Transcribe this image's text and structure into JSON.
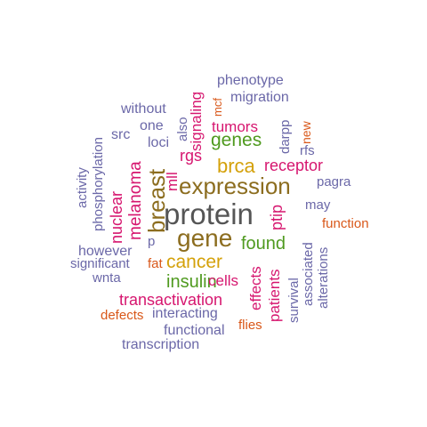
{
  "colors": {
    "gray": "#555555",
    "brown": "#8c6d1f",
    "green": "#4f9a1f",
    "magenta": "#d6166f",
    "mustard": "#d4a10a",
    "orange": "#d9581a",
    "purple": "#6b68a8"
  },
  "words": {
    "protein": "protein",
    "gene": "gene",
    "expression": "expression",
    "breast": "breast",
    "brca": "brca",
    "cancer": "cancer",
    "found": "found",
    "insulin": "insulin",
    "genes": "genes",
    "receptor": "receptor",
    "transactivation": "transactivation",
    "melanoma": "melanoma",
    "nuclear": "nuclear",
    "tumors": "tumors",
    "signaling": "signaling",
    "rgs": "rgs",
    "ptip": "ptip",
    "patients": "patients",
    "effects": "effects",
    "cells": "cells",
    "mll": "mll",
    "phenotype": "phenotype",
    "migration": "migration",
    "without": "without",
    "one": "one",
    "also": "also",
    "mcf": "mcf",
    "new": "new",
    "src": "src",
    "loci": "loci",
    "darpp": "darpp",
    "rfs": "rfs",
    "pagra": "pagra",
    "may": "may",
    "function": "function",
    "phosphorylation": "phosphorylation",
    "activity": "activity",
    "however": "however",
    "significant": "significant",
    "fat": "fat",
    "p": "p",
    "wnta": "wnta",
    "associated": "associated",
    "alterations": "alterations",
    "survival": "survival",
    "defects": "defects",
    "interacting": "interacting",
    "functional": "functional",
    "flies": "flies",
    "transcription": "transcription"
  }
}
